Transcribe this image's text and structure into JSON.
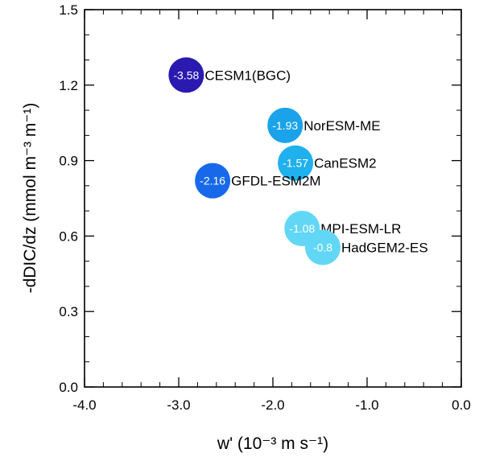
{
  "chart_data": {
    "type": "scatter",
    "title": "",
    "xlabel": "w' (10⁻³ m s⁻¹)",
    "ylabel": "-dDIC/dz (mmol m⁻³ m⁻¹)",
    "xlim": [
      -4.0,
      0.0
    ],
    "ylim": [
      0.0,
      1.5
    ],
    "xticks": [
      -4.0,
      -3.0,
      -2.0,
      -1.0,
      0.0
    ],
    "xtick_labels": [
      "-4.0",
      "-3.0",
      "-2.0",
      "-1.0",
      "0.0"
    ],
    "yticks": [
      0.0,
      0.3,
      0.6,
      0.9,
      1.2,
      1.5
    ],
    "ytick_labels": [
      "0.0",
      "0.3",
      "0.6",
      "0.9",
      "1.2",
      "1.5"
    ],
    "grid": false,
    "points": [
      {
        "name": "CESM1(BGC)",
        "x": -2.92,
        "y": 1.24,
        "value": "-3.58",
        "color": "#2a1ab0"
      },
      {
        "name": "NorESM-ME",
        "x": -1.87,
        "y": 1.04,
        "value": "-1.93",
        "color": "#1aa3ea"
      },
      {
        "name": "CanESM2",
        "x": -1.76,
        "y": 0.89,
        "value": "-1.57",
        "color": "#1fb0ee"
      },
      {
        "name": "GFDL-ESM2M",
        "x": -2.64,
        "y": 0.82,
        "value": "-2.16",
        "color": "#1769ea"
      },
      {
        "name": "MPI-ESM-LR",
        "x": -1.69,
        "y": 0.63,
        "value": "-1.08",
        "color": "#62d7f5"
      },
      {
        "name": "HadGEM2-ES",
        "x": -1.47,
        "y": 0.555,
        "value": "-0.8",
        "color": "#62d7f5"
      }
    ]
  }
}
